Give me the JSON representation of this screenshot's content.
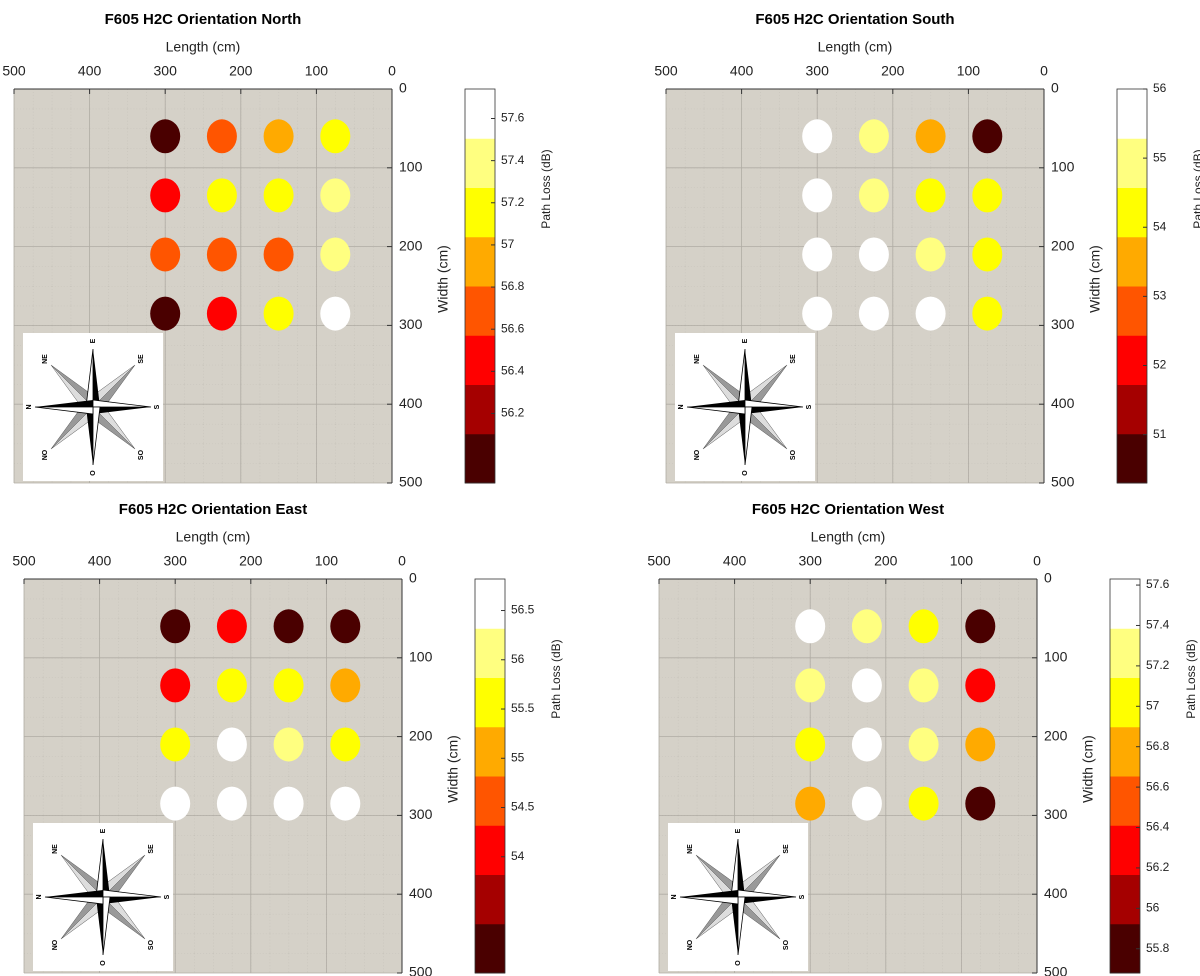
{
  "compass_labels": [
    "E",
    "SE",
    "S",
    "SO",
    "O",
    "NO",
    "N",
    "NE"
  ],
  "chart_data": [
    {
      "type": "scatter",
      "title": "F605 H2C Orientation North",
      "xlabel": "Length (cm)",
      "ylabel": "Width (cm)",
      "colorbar_label": "Path Loss (dB)",
      "x": [
        300,
        225,
        150,
        75,
        300,
        225,
        150,
        75,
        300,
        225,
        150,
        75,
        300,
        225,
        150,
        75
      ],
      "y": [
        60,
        60,
        60,
        60,
        135,
        135,
        135,
        135,
        210,
        210,
        210,
        210,
        285,
        285,
        285,
        285
      ],
      "values": [
        56.0,
        56.7,
        56.9,
        57.15,
        56.45,
        57.15,
        57.15,
        57.4,
        56.7,
        56.7,
        56.7,
        57.4,
        56.0,
        56.45,
        57.15,
        57.6
      ],
      "xlim": [
        500,
        0
      ],
      "ylim": [
        0,
        500
      ],
      "xticks": [
        500,
        400,
        300,
        200,
        100,
        0
      ],
      "yticks": [
        0,
        100,
        200,
        300,
        400,
        500
      ],
      "clim": [
        55.87,
        57.74
      ],
      "cticks": [
        56.2,
        56.4,
        56.6,
        56.8,
        57,
        57.2,
        57.4,
        57.6
      ],
      "colormap": [
        "#4a0000",
        "#a50000",
        "#ff0000",
        "#ff5500",
        "#ffaa00",
        "#ffff00",
        "#ffff80",
        "#ffffff"
      ],
      "grid": true
    },
    {
      "type": "scatter",
      "title": "F605 H2C Orientation South",
      "xlabel": "Length (cm)",
      "ylabel": "Width (cm)",
      "colorbar_label": "Path Loss (dB)",
      "x": [
        300,
        225,
        150,
        75,
        300,
        225,
        150,
        75,
        300,
        225,
        150,
        75,
        300,
        225,
        150,
        75
      ],
      "y": [
        60,
        60,
        60,
        60,
        135,
        135,
        135,
        135,
        210,
        210,
        210,
        210,
        285,
        285,
        285,
        285
      ],
      "values": [
        55.65,
        54.95,
        53.55,
        50.65,
        55.65,
        54.95,
        54.25,
        54.25,
        55.65,
        55.65,
        54.95,
        54.25,
        55.65,
        55.65,
        55.65,
        54.25
      ],
      "xlim": [
        500,
        0
      ],
      "ylim": [
        0,
        500
      ],
      "xticks": [
        500,
        400,
        300,
        200,
        100,
        0
      ],
      "yticks": [
        0,
        100,
        200,
        300,
        400,
        500
      ],
      "clim": [
        50.3,
        56.0
      ],
      "cticks": [
        51,
        52,
        53,
        54,
        55,
        56
      ],
      "colormap": [
        "#4a0000",
        "#a50000",
        "#ff0000",
        "#ff5500",
        "#ffaa00",
        "#ffff00",
        "#ffff80",
        "#ffffff"
      ],
      "grid": true
    },
    {
      "type": "scatter",
      "title": "F605 H2C Orientation East",
      "xlabel": "Length (cm)",
      "ylabel": "Width (cm)",
      "colorbar_label": "Path Loss (dB)",
      "x": [
        300,
        225,
        150,
        75,
        300,
        225,
        150,
        75,
        300,
        225,
        150,
        75,
        300,
        225,
        150,
        75
      ],
      "y": [
        60,
        60,
        60,
        60,
        135,
        135,
        135,
        135,
        210,
        210,
        210,
        210,
        285,
        285,
        285,
        285
      ],
      "values": [
        53.07,
        54.07,
        53.07,
        53.07,
        54.07,
        55.57,
        55.57,
        55.07,
        55.57,
        56.57,
        56.07,
        55.57,
        56.57,
        56.57,
        56.57,
        56.57
      ],
      "xlim": [
        500,
        0
      ],
      "ylim": [
        0,
        500
      ],
      "xticks": [
        500,
        400,
        300,
        200,
        100,
        0
      ],
      "yticks": [
        0,
        100,
        200,
        300,
        400,
        500
      ],
      "clim": [
        52.82,
        56.82
      ],
      "cticks": [
        54,
        54.5,
        55,
        55.5,
        56,
        56.5
      ],
      "colormap": [
        "#4a0000",
        "#a50000",
        "#ff0000",
        "#ff5500",
        "#ffaa00",
        "#ffff00",
        "#ffff80",
        "#ffffff"
      ],
      "grid": true
    },
    {
      "type": "scatter",
      "title": "F605 H2C Orientation West",
      "xlabel": "Length (cm)",
      "ylabel": "Width (cm)",
      "colorbar_label": "Path Loss (dB)",
      "x": [
        300,
        225,
        150,
        75,
        300,
        225,
        150,
        75,
        300,
        225,
        150,
        75,
        300,
        225,
        150,
        75
      ],
      "y": [
        60,
        60,
        60,
        60,
        135,
        135,
        135,
        135,
        210,
        210,
        210,
        210,
        285,
        285,
        285,
        285
      ],
      "values": [
        57.5,
        57.27,
        57.02,
        55.8,
        57.27,
        57.5,
        57.27,
        56.3,
        57.02,
        57.5,
        57.27,
        56.78,
        56.78,
        57.5,
        57.02,
        55.8
      ],
      "xlim": [
        500,
        0
      ],
      "ylim": [
        0,
        500
      ],
      "xticks": [
        500,
        400,
        300,
        200,
        100,
        0
      ],
      "yticks": [
        0,
        100,
        200,
        300,
        400,
        500
      ],
      "clim": [
        55.68,
        57.63
      ],
      "cticks": [
        55.8,
        56,
        56.2,
        56.4,
        56.6,
        56.8,
        57,
        57.2,
        57.4,
        57.6
      ],
      "colormap": [
        "#4a0000",
        "#a50000",
        "#ff0000",
        "#ff5500",
        "#ffaa00",
        "#ffff00",
        "#ffff80",
        "#ffffff"
      ],
      "grid": true
    }
  ]
}
